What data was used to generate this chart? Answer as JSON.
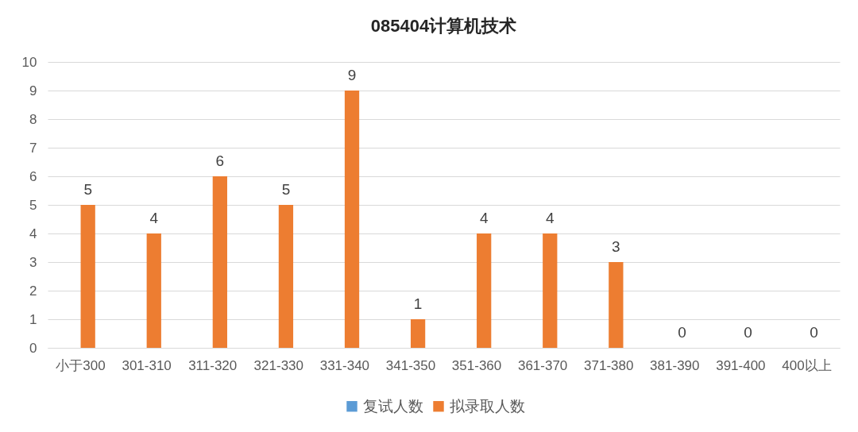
{
  "chart_data": {
    "type": "bar",
    "title": "085404计算机技术",
    "categories": [
      "小于300",
      "301-310",
      "311-320",
      "321-330",
      "331-340",
      "341-350",
      "351-360",
      "361-370",
      "371-380",
      "381-390",
      "391-400",
      "400以上"
    ],
    "series": [
      {
        "name": "复试人数",
        "color": "#5b9bd5",
        "values": [
          null,
          null,
          null,
          null,
          null,
          null,
          null,
          null,
          null,
          null,
          null,
          null
        ]
      },
      {
        "name": "拟录取人数",
        "color": "#ed7d31",
        "values": [
          5,
          4,
          6,
          5,
          9,
          1,
          4,
          4,
          3,
          0,
          0,
          0
        ]
      }
    ],
    "ylim": [
      0,
      10
    ],
    "yticks": [
      0,
      1,
      2,
      3,
      4,
      5,
      6,
      7,
      8,
      9,
      10
    ],
    "grid": "y",
    "legend": "bottom",
    "data_labels": true
  }
}
